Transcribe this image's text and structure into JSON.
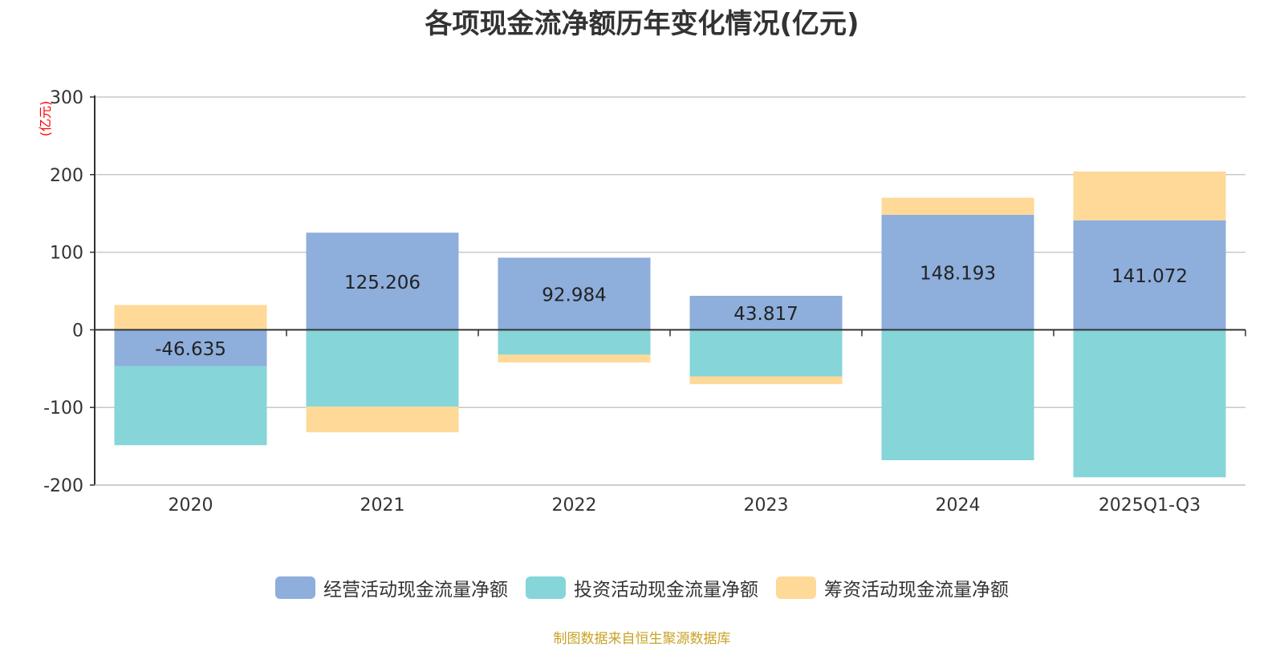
{
  "chart_data": {
    "type": "bar",
    "stacked": true,
    "title": "各项现金流净额历年变化情况(亿元)",
    "ylabel": "(亿元)",
    "ylim": [
      -200,
      300
    ],
    "yticks": [
      300,
      200,
      100,
      0,
      -100,
      -200
    ],
    "categories": [
      "2020",
      "2021",
      "2022",
      "2023",
      "2024",
      "2025Q1-Q3"
    ],
    "series": [
      {
        "name": "经营活动现金流量净额",
        "color": "#8eaedc",
        "values": [
          -46.635,
          125.206,
          92.984,
          43.817,
          148.193,
          141.072
        ]
      },
      {
        "name": "投资活动现金流量净额",
        "color": "#86d5d8",
        "values": [
          -102,
          -99,
          -32,
          -60,
          -168,
          -190
        ]
      },
      {
        "name": "筹资活动现金流量净额",
        "color": "#fed998",
        "values": [
          32,
          -33,
          -10,
          -10,
          22,
          63
        ]
      }
    ],
    "data_labels": [
      "-46.635",
      "125.206",
      "92.984",
      "43.817",
      "148.193",
      "141.072"
    ],
    "legend_position": "bottom"
  },
  "source_note": "制图数据来自恒生聚源数据库"
}
